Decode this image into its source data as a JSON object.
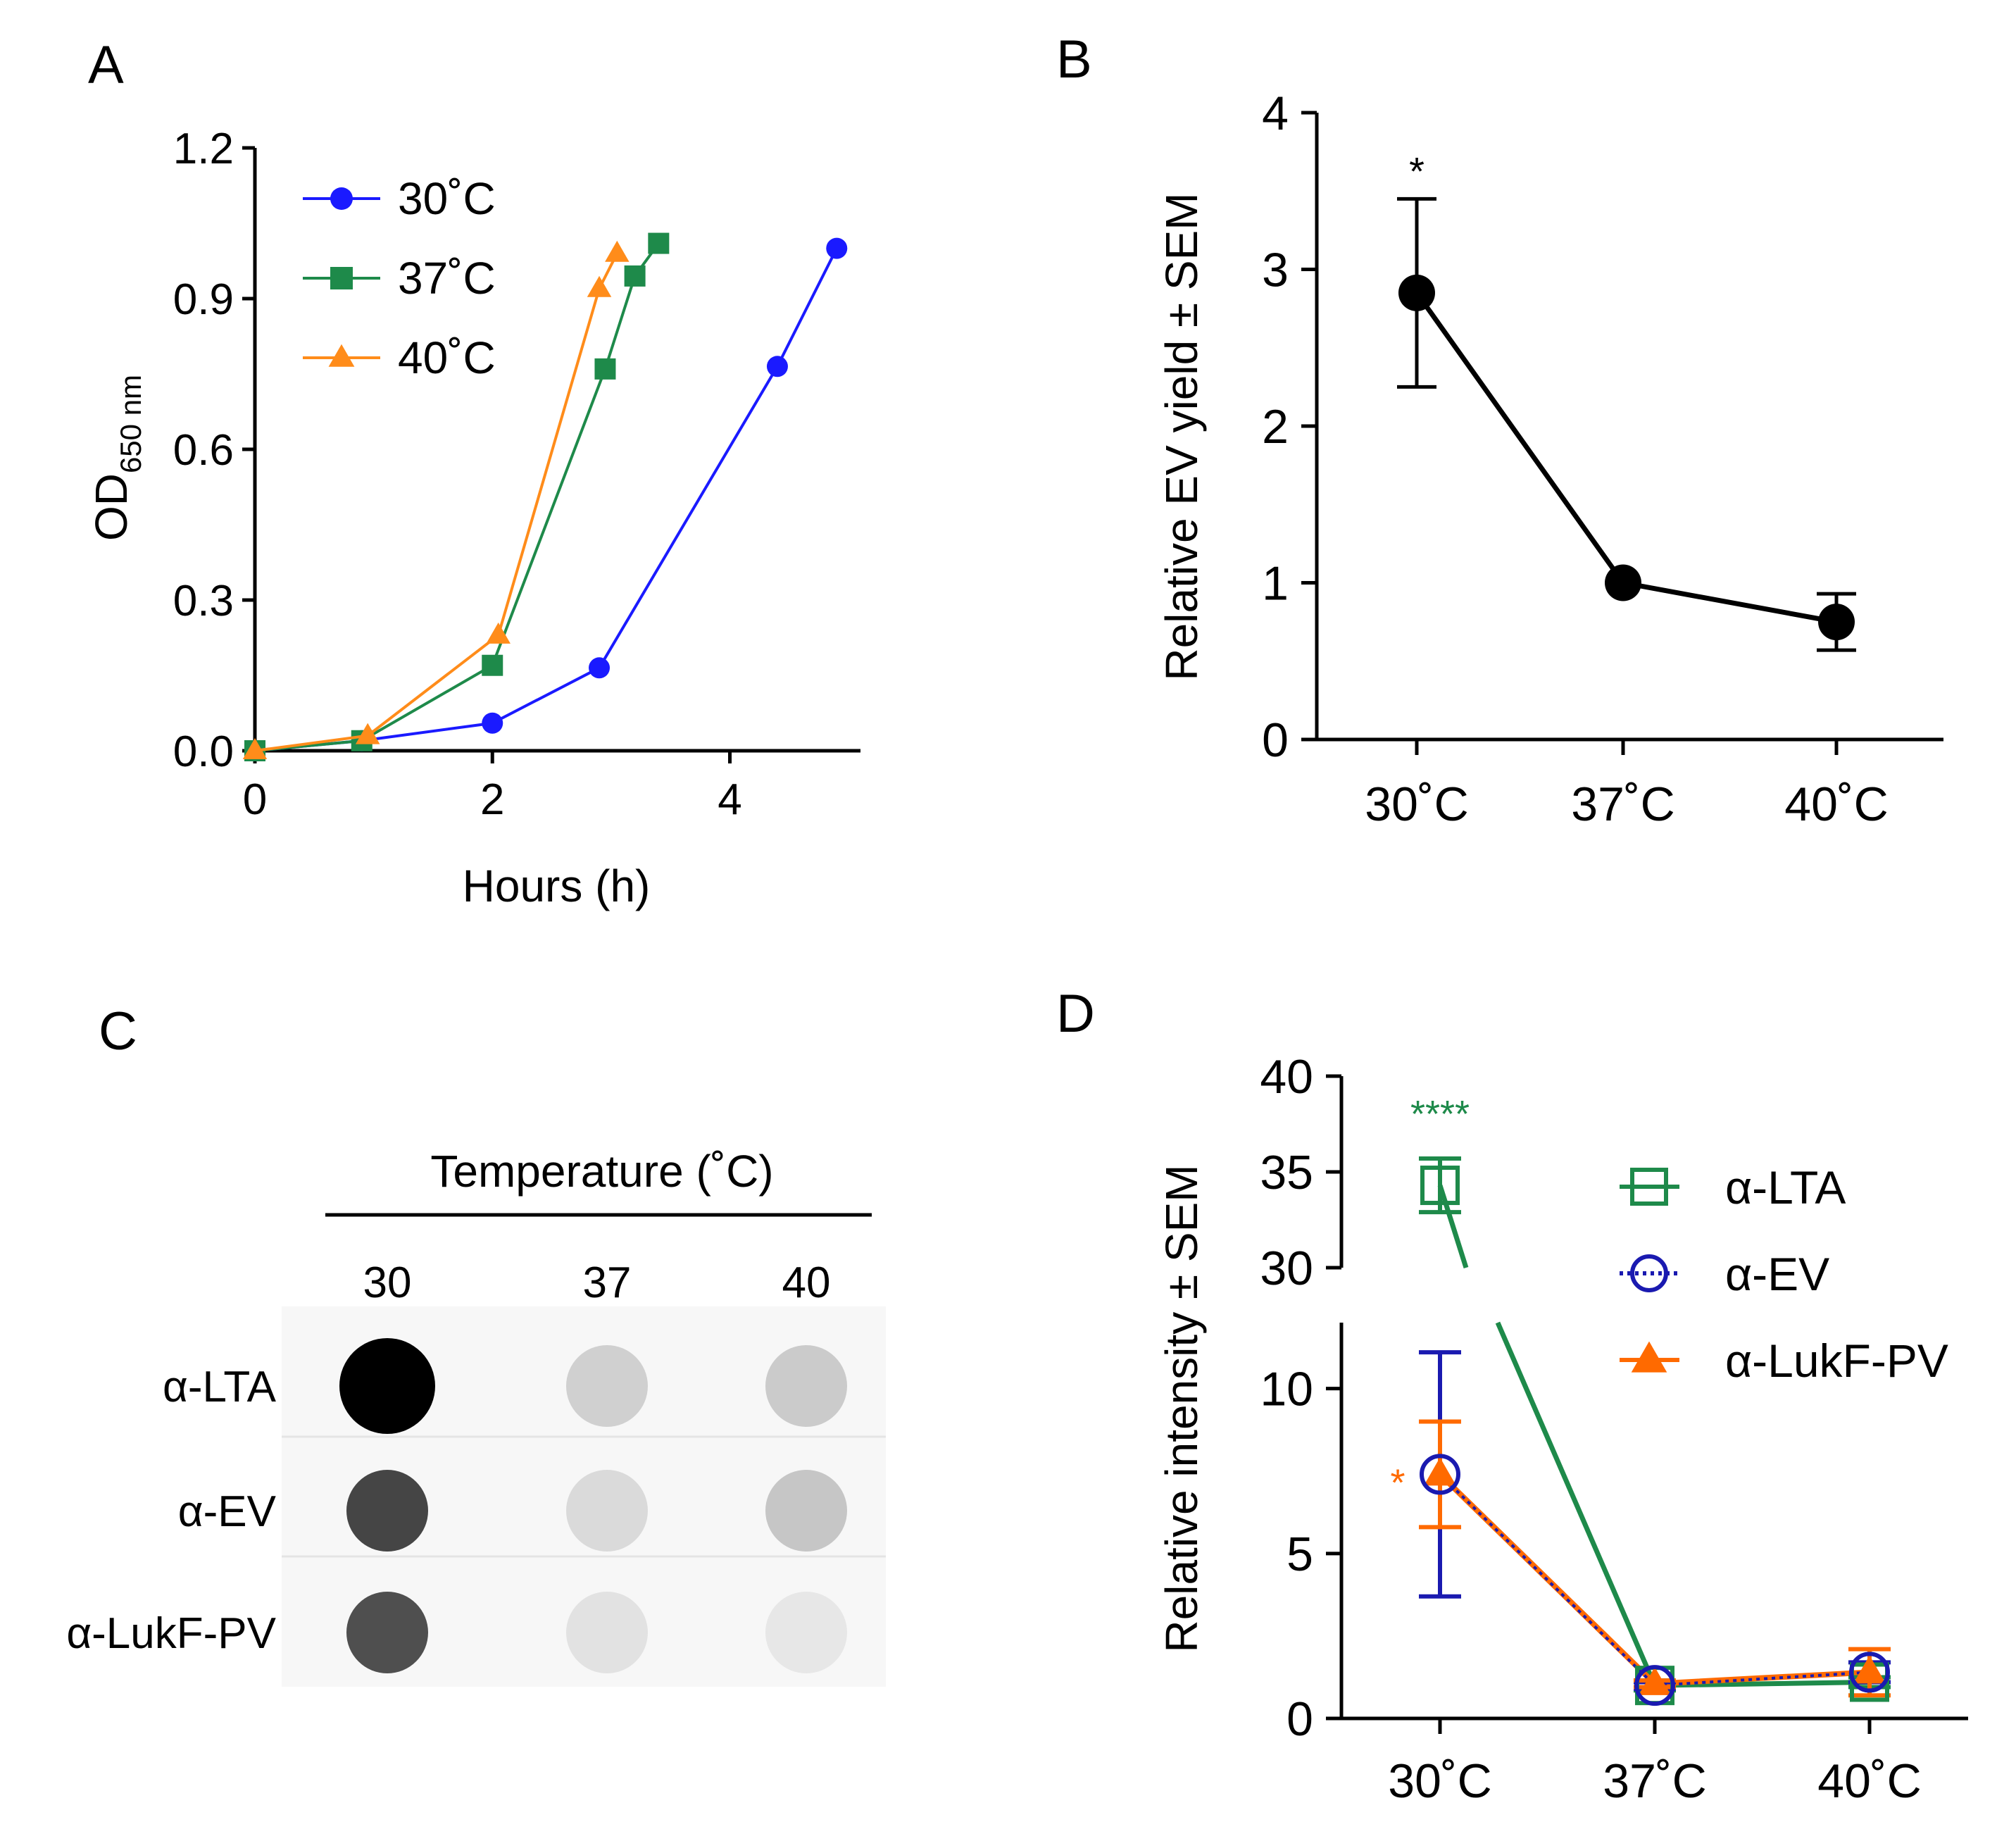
{
  "panels": {
    "a": "A",
    "b": "B",
    "c": "C",
    "d": "D"
  },
  "chart_data": [
    {
      "panel": "A",
      "type": "line",
      "xlabel": "Hours (h)",
      "ylabel": "OD",
      "ylabel_sub": "650 nm",
      "xlim": [
        0,
        5.1
      ],
      "ylim": [
        0,
        1.2
      ],
      "xticks": [
        "0",
        "2",
        "4"
      ],
      "yticks": [
        "0.0",
        "0.3",
        "0.6",
        "0.9",
        "1.2"
      ],
      "legend": {
        "position": "top-left",
        "entries": [
          "30˚C",
          "37˚C",
          "40˚C"
        ]
      },
      "series": [
        {
          "name": "30˚C",
          "color": "#1a1aff",
          "marker": "circle",
          "x": [
            0,
            0.9,
            2.0,
            2.9,
            4.4,
            4.9
          ],
          "y": [
            0.0,
            0.02,
            0.055,
            0.165,
            0.765,
            1.0
          ]
        },
        {
          "name": "37˚C",
          "color": "#1e8a4a",
          "marker": "square",
          "x": [
            0,
            0.9,
            2.0,
            2.95,
            3.2,
            3.4
          ],
          "y": [
            0.0,
            0.02,
            0.17,
            0.76,
            0.945,
            1.01
          ]
        },
        {
          "name": "40˚C",
          "color": "#ff8c1a",
          "marker": "triangle",
          "x": [
            0,
            0.95,
            2.05,
            2.9,
            3.05
          ],
          "y": [
            0.0,
            0.03,
            0.23,
            0.92,
            0.99
          ]
        }
      ]
    },
    {
      "panel": "B",
      "type": "line",
      "ylabel": "Relative EV yield ± SEM",
      "categories": [
        "30˚C",
        "37˚C",
        "40˚C"
      ],
      "ylim": [
        0,
        4
      ],
      "yticks": [
        "0",
        "1",
        "2",
        "3",
        "4"
      ],
      "series": [
        {
          "name": "EV yield",
          "color": "#000000",
          "values": [
            2.85,
            1.0,
            0.75
          ],
          "err": [
            0.6,
            0.0,
            0.18
          ]
        }
      ],
      "annotations": [
        {
          "category": "30˚C",
          "text": "*"
        }
      ]
    },
    {
      "panel": "D",
      "type": "line",
      "ylabel": "Relative intensity ± SEM",
      "categories": [
        "30˚C",
        "37˚C",
        "40˚C"
      ],
      "ylim_lower": [
        0,
        12
      ],
      "ylim_upper": [
        30,
        40
      ],
      "yticks_lower": [
        "0",
        "5",
        "10"
      ],
      "yticks_upper": [
        "30",
        "35",
        "40"
      ],
      "legend": {
        "position": "right",
        "entries": [
          "α-LTA",
          "α-EV",
          "α-LukF-PV"
        ]
      },
      "series": [
        {
          "name": "α-LTA",
          "color": "#1e8a4a",
          "marker": "open-square",
          "values": [
            34.3,
            1.0,
            1.1
          ],
          "err": [
            1.4,
            0.15,
            0.15
          ]
        },
        {
          "name": "α-EV",
          "color": "#1a1ab0",
          "marker": "open-circle",
          "values": [
            7.4,
            1.0,
            1.4
          ],
          "err": [
            3.7,
            0.1,
            0.3
          ]
        },
        {
          "name": "α-LukF-PV",
          "color": "#ff6a00",
          "marker": "triangle",
          "values": [
            7.4,
            1.05,
            1.4
          ],
          "err": [
            1.6,
            0.1,
            0.7
          ]
        }
      ],
      "annotations": [
        {
          "series": "α-LTA",
          "text": "****",
          "color": "#1e8a4a"
        },
        {
          "series": "α-LukF-PV",
          "text": "*",
          "color": "#ff6a00"
        }
      ]
    }
  ],
  "blot": {
    "header": "Temperature (˚C)",
    "columns": [
      "30",
      "37",
      "40"
    ],
    "rows": [
      "α-LTA",
      "α-EV",
      "α-LukF-PV"
    ],
    "intensity": [
      [
        1.0,
        0.16,
        0.18
      ],
      [
        0.72,
        0.12,
        0.2
      ],
      [
        0.68,
        0.09,
        0.07
      ]
    ]
  }
}
